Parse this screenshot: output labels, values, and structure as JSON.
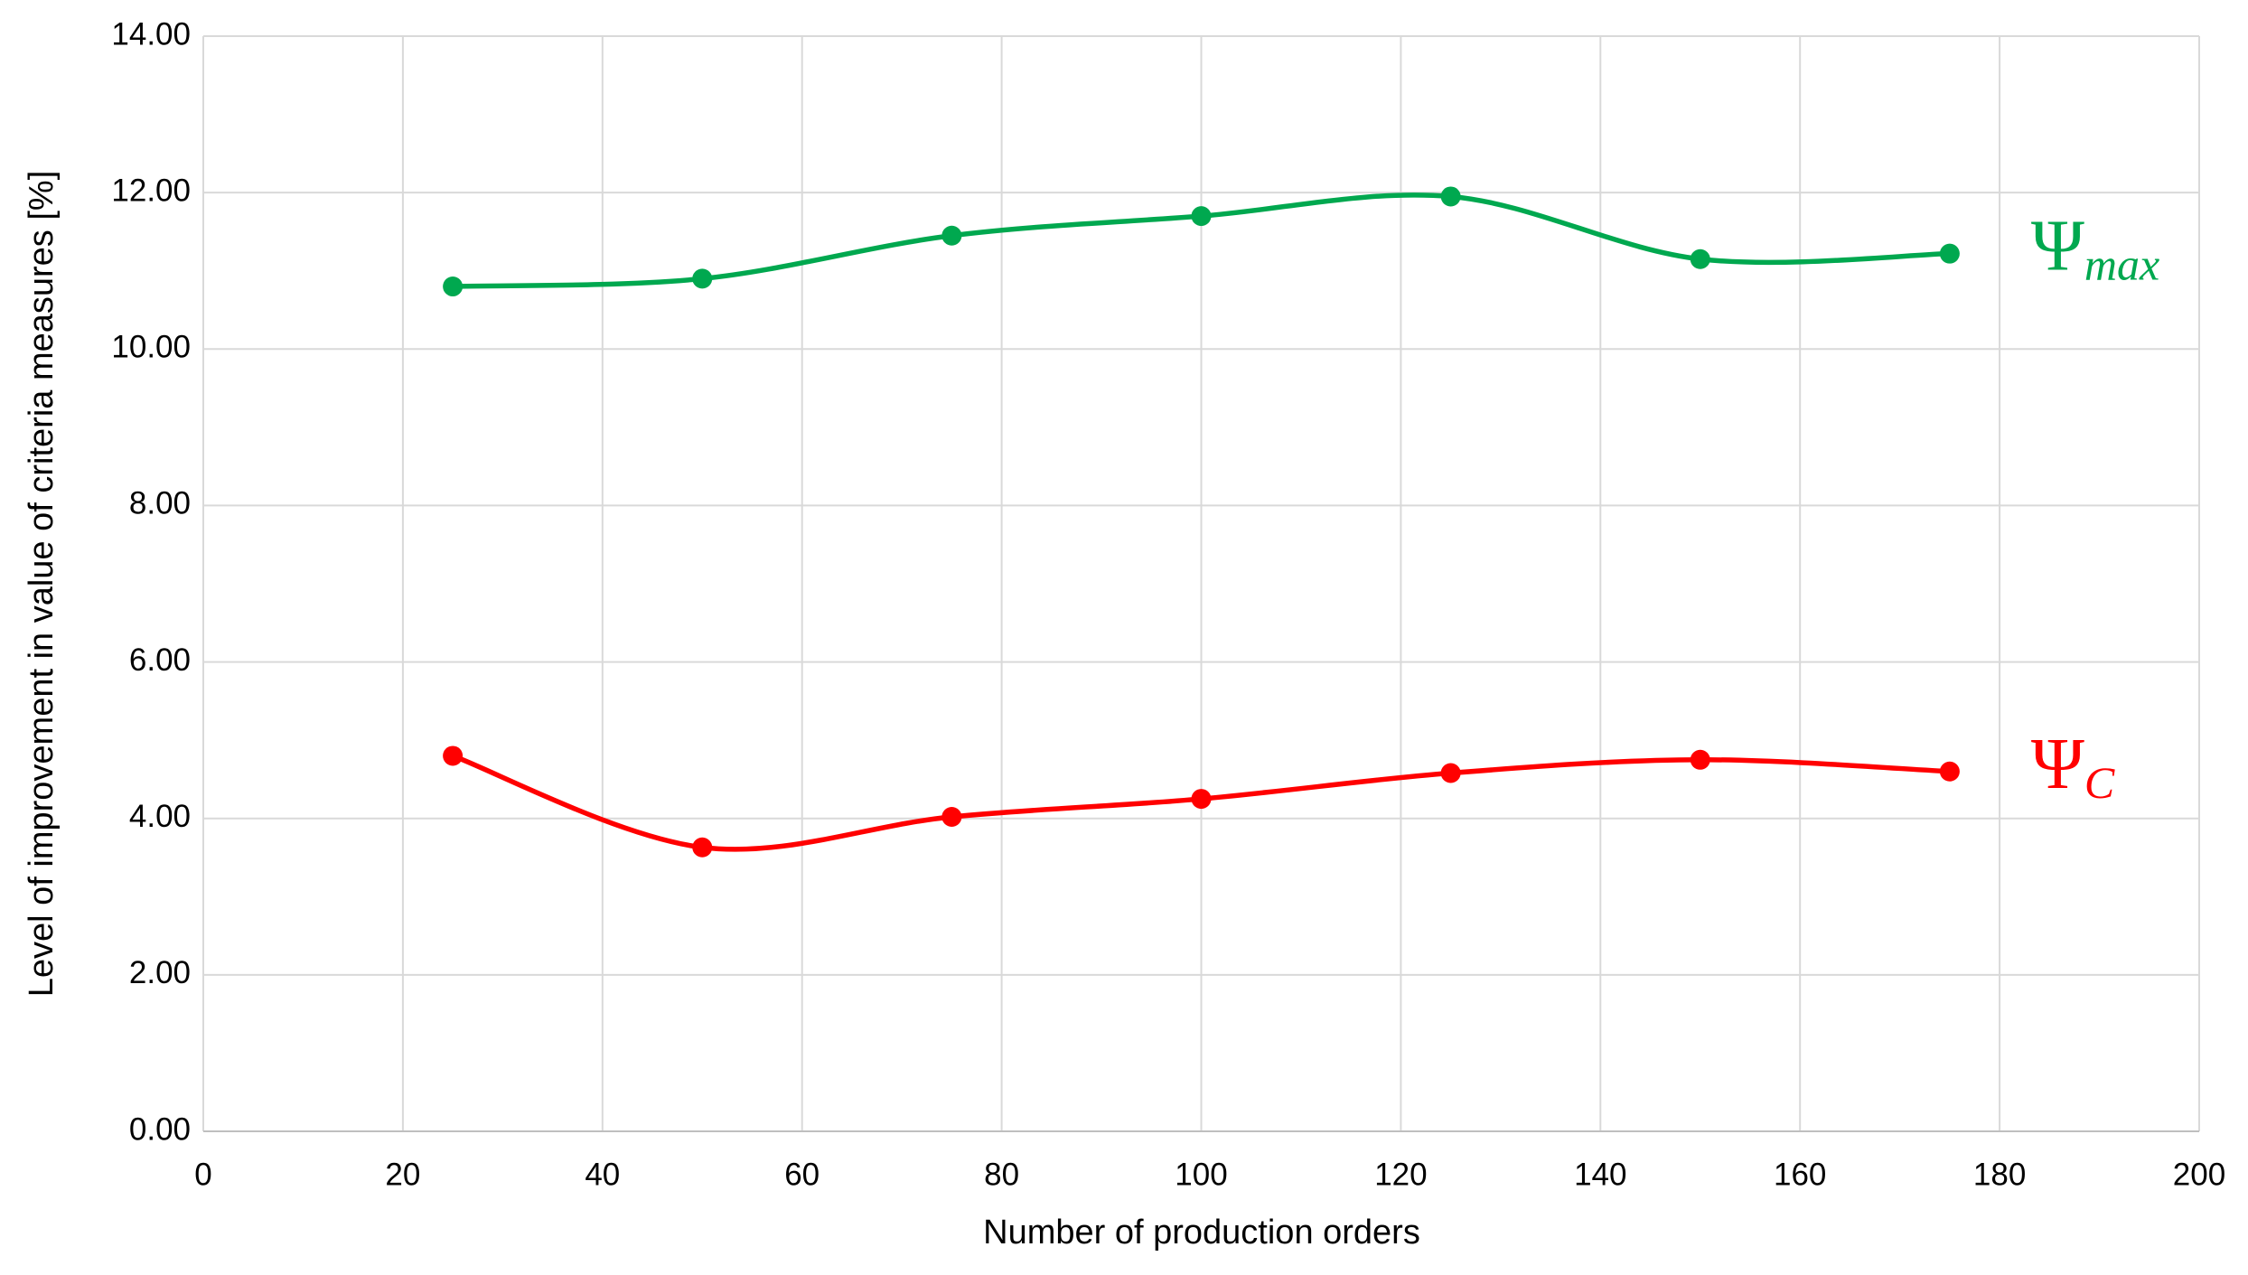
{
  "chart_data": {
    "type": "line",
    "x_label": "Number of production orders",
    "y_label": "Level of improvement in value of criteria measures [%]",
    "x": [
      25,
      50,
      75,
      100,
      125,
      150,
      175
    ],
    "series": [
      {
        "name": "Ψ",
        "name_subscript": "max",
        "color": "#00a84f",
        "values": [
          10.8,
          10.9,
          11.45,
          11.7,
          11.95,
          11.15,
          11.22
        ]
      },
      {
        "name": "Ψ",
        "name_subscript": "C",
        "color": "#ff0000",
        "values": [
          4.8,
          3.63,
          4.02,
          4.25,
          4.58,
          4.75,
          4.6
        ]
      }
    ],
    "xlim": [
      0,
      200
    ],
    "xticks": [
      0,
      20,
      40,
      60,
      80,
      100,
      120,
      140,
      160,
      180,
      200
    ],
    "ylim": [
      0,
      14
    ],
    "yticks": [
      {
        "value": 0,
        "label": "0.00"
      },
      {
        "value": 2,
        "label": "2.00"
      },
      {
        "value": 4,
        "label": "4.00"
      },
      {
        "value": 6,
        "label": "6.00"
      },
      {
        "value": 8,
        "label": "8.00"
      },
      {
        "value": 10,
        "label": "10.00"
      },
      {
        "value": 12,
        "label": "12.00"
      },
      {
        "value": 14,
        "label": "14.00"
      }
    ],
    "grid": true,
    "smooth": true
  }
}
